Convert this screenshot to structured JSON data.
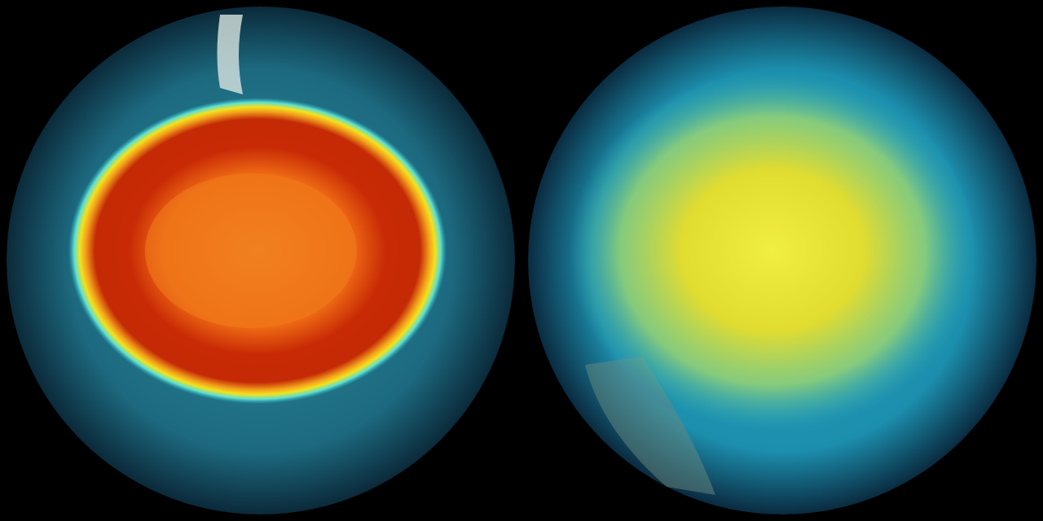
{
  "globes": [
    {
      "id": "left",
      "view": "south-polar",
      "colors": {
        "ocean": "#1d6a80",
        "rim": "#0b2a3a",
        "halo": "#3ec9d4",
        "ring": "#f2d21c",
        "hole": "#c42a05",
        "core": "#f07a1a"
      }
    },
    {
      "id": "right",
      "view": "north-polar",
      "colors": {
        "ocean": "#1c8fae",
        "rim": "#0a2b40",
        "glow": "#e8e43a",
        "mid": "#7fd48a"
      }
    }
  ],
  "background": "#000000"
}
